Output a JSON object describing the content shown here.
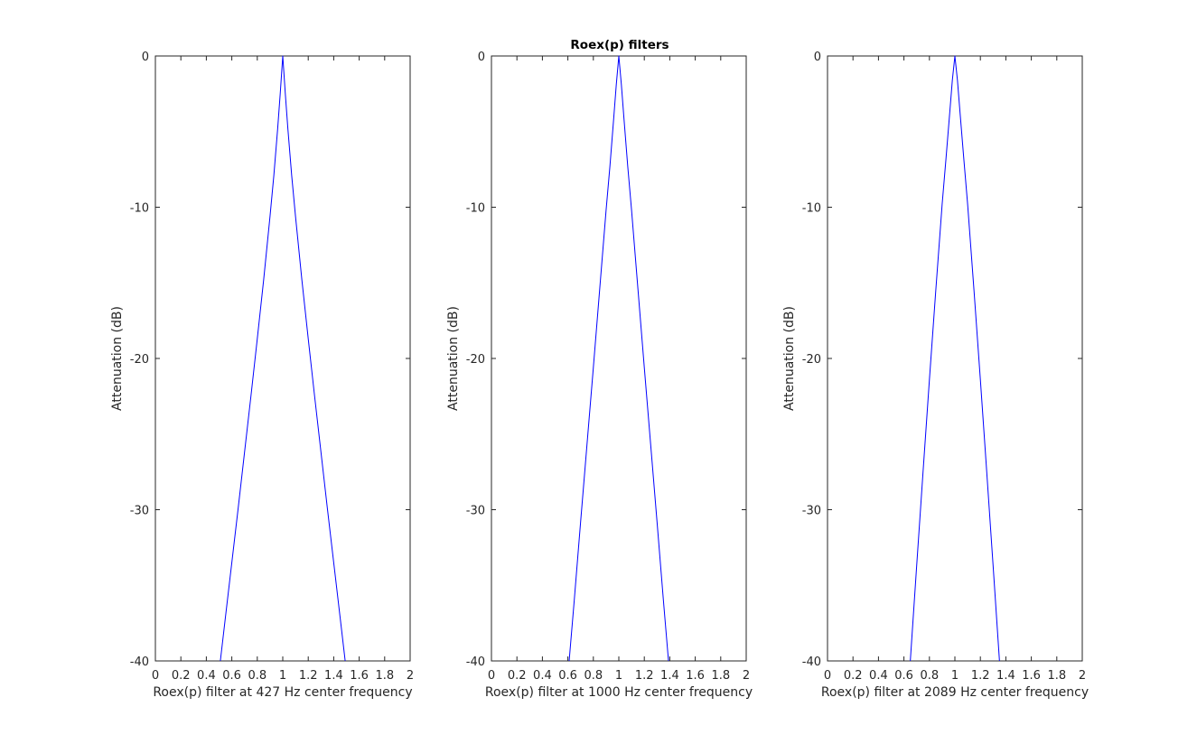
{
  "figure": {
    "title": "Roex(p) filters"
  },
  "colors": {
    "line": "#0000ff",
    "axes": "#262626",
    "background": "#ffffff"
  },
  "chart_data": [
    {
      "type": "line",
      "title": "",
      "xlabel": "Roex(p) filter at 427 Hz center frequency",
      "ylabel": "Attenuation (dB)",
      "xlim": [
        0,
        2
      ],
      "ylim": [
        -40,
        0
      ],
      "xticks": [
        0,
        0.2,
        0.4,
        0.6,
        0.8,
        1,
        1.2,
        1.4,
        1.6,
        1.8,
        2
      ],
      "xtick_labels": [
        "0",
        "0.2",
        "0.4",
        "0.6",
        "0.8",
        "1",
        "1.2",
        "1.4",
        "1.6",
        "1.8",
        "2"
      ],
      "yticks": [
        -40,
        -30,
        -20,
        -10,
        0
      ],
      "ytick_labels": [
        "-40",
        "-30",
        "-20",
        "-10",
        "0"
      ],
      "grid": false,
      "series": [
        {
          "x": [
            0.51,
            0.55,
            0.6,
            0.65,
            0.7,
            0.75,
            0.8,
            0.85,
            0.9,
            0.93,
            0.96,
            0.98,
            1.0,
            1.02,
            1.04,
            1.07,
            1.1,
            1.15,
            1.2,
            1.25,
            1.3,
            1.35,
            1.4,
            1.45,
            1.49
          ],
          "y": [
            -40,
            -37.1,
            -33.5,
            -29.9,
            -26.2,
            -22.5,
            -18.7,
            -14.8,
            -10.6,
            -7.9,
            -4.8,
            -2.5,
            0,
            -2.5,
            -4.8,
            -7.9,
            -10.6,
            -14.8,
            -18.7,
            -22.5,
            -26.2,
            -29.9,
            -33.5,
            -37.1,
            -40
          ]
        }
      ]
    },
    {
      "type": "line",
      "title": "",
      "xlabel": "Roex(p) filter at 1000 Hz center frequency",
      "ylabel": "Attenuation (dB)",
      "xlim": [
        0,
        2
      ],
      "ylim": [
        -40,
        0
      ],
      "xticks": [
        0,
        0.2,
        0.4,
        0.6,
        0.8,
        1,
        1.2,
        1.4,
        1.6,
        1.8,
        2
      ],
      "xtick_labels": [
        "0",
        "0.2",
        "0.4",
        "0.6",
        "0.8",
        "1",
        "1.2",
        "1.4",
        "1.6",
        "1.8",
        "2"
      ],
      "yticks": [
        -40,
        -30,
        -20,
        -10,
        0
      ],
      "ytick_labels": [
        "-40",
        "-30",
        "-20",
        "-10",
        "0"
      ],
      "grid": false,
      "series": [
        {
          "x": [
            0.61,
            0.65,
            0.7,
            0.75,
            0.8,
            0.85,
            0.9,
            0.93,
            0.96,
            0.98,
            1.0,
            1.02,
            1.04,
            1.07,
            1.1,
            1.15,
            1.2,
            1.25,
            1.3,
            1.35,
            1.39
          ],
          "y": [
            -40,
            -36.0,
            -30.8,
            -25.7,
            -20.6,
            -15.4,
            -10.2,
            -7.3,
            -4.1,
            -1.9,
            0,
            -1.9,
            -4.1,
            -7.3,
            -10.2,
            -15.4,
            -20.6,
            -25.7,
            -30.8,
            -36.0,
            -40
          ]
        }
      ]
    },
    {
      "type": "line",
      "title": "",
      "xlabel": "Roex(p) filter at 2089 Hz center frequency",
      "ylabel": "Attenuation (dB)",
      "xlim": [
        0,
        2
      ],
      "ylim": [
        -40,
        0
      ],
      "xticks": [
        0,
        0.2,
        0.4,
        0.6,
        0.8,
        1,
        1.2,
        1.4,
        1.6,
        1.8,
        2
      ],
      "xtick_labels": [
        "0",
        "0.2",
        "0.4",
        "0.6",
        "0.8",
        "1",
        "1.2",
        "1.4",
        "1.6",
        "1.8",
        "2"
      ],
      "yticks": [
        -40,
        -30,
        -20,
        -10,
        0
      ],
      "ytick_labels": [
        "-40",
        "-30",
        "-20",
        "-10",
        "0"
      ],
      "grid": false,
      "series": [
        {
          "x": [
            0.65,
            0.7,
            0.75,
            0.8,
            0.85,
            0.9,
            0.93,
            0.96,
            0.98,
            1.0,
            1.02,
            1.04,
            1.07,
            1.1,
            1.15,
            1.2,
            1.25,
            1.3,
            1.35
          ],
          "y": [
            -40,
            -33.7,
            -27.5,
            -21.4,
            -15.5,
            -9.8,
            -6.8,
            -3.7,
            -1.6,
            0,
            -1.6,
            -3.7,
            -6.8,
            -9.8,
            -15.5,
            -21.4,
            -27.5,
            -33.7,
            -40
          ]
        }
      ]
    }
  ]
}
